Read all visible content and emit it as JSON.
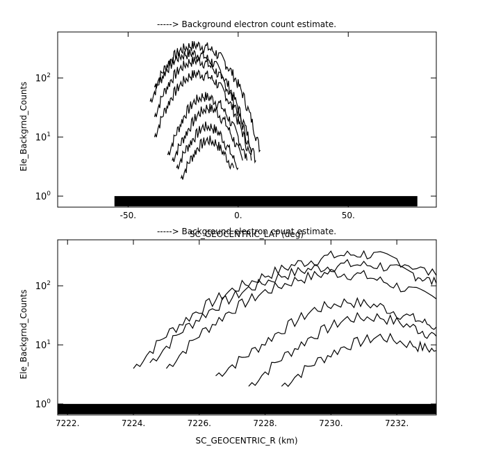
{
  "chart_data": [
    {
      "type": "scatter",
      "title": "-----> Background electron count estimate.",
      "xlabel": "SC_GEOCENTRIC_LAT (deg)",
      "ylabel": "Ele_Backgrnd_Counts",
      "xlim": [
        -82,
        90
      ],
      "ylim": [
        0.65,
        600
      ],
      "yscale": "log",
      "x_ticks": [
        -50,
        0,
        50
      ],
      "x_tick_labels": [
        "-50.",
        "0.",
        "50."
      ],
      "y_ticks": [
        1,
        10,
        100
      ],
      "y_tick_labels": [
        "10^0",
        "10^1",
        "10^2"
      ],
      "grid": false,
      "legend": "none",
      "series": [
        {
          "x": [
            -38,
            -34,
            -30,
            -26,
            -22,
            -18,
            -14,
            -10,
            -6,
            -2,
            2,
            6,
            10
          ],
          "y": [
            70,
            135,
            220,
            300,
            350,
            360,
            330,
            265,
            185,
            110,
            55,
            20,
            6
          ]
        },
        {
          "x": [
            -40,
            -36,
            -32,
            -28,
            -24,
            -20,
            -16,
            -12,
            -8,
            -4,
            0,
            4,
            8
          ],
          "y": [
            40,
            85,
            150,
            215,
            255,
            260,
            240,
            190,
            130,
            70,
            32,
            12,
            4
          ]
        },
        {
          "x": [
            -38,
            -34,
            -30,
            -26,
            -22,
            -18,
            -14,
            -10,
            -6,
            -2,
            2,
            6
          ],
          "y": [
            22,
            55,
            100,
            150,
            190,
            200,
            175,
            130,
            80,
            40,
            16,
            5
          ]
        },
        {
          "x": [
            -38,
            -34,
            -30,
            -26,
            -22,
            -18,
            -14,
            -10,
            -6,
            -2,
            2,
            6
          ],
          "y": [
            10,
            25,
            50,
            80,
            110,
            120,
            110,
            85,
            55,
            28,
            12,
            4
          ]
        },
        {
          "x": [
            -32,
            -28,
            -24,
            -20,
            -16,
            -12,
            -8,
            -4,
            0,
            4
          ],
          "y": [
            5,
            12,
            25,
            40,
            50,
            45,
            35,
            20,
            10,
            4
          ]
        },
        {
          "x": [
            -30,
            -26,
            -22,
            -18,
            -14,
            -10,
            -6,
            -2,
            2
          ],
          "y": [
            4,
            8,
            15,
            25,
            32,
            28,
            18,
            9,
            4
          ]
        },
        {
          "x": [
            -28,
            -24,
            -20,
            -16,
            -12,
            -8,
            -4,
            0
          ],
          "y": [
            3,
            6,
            10,
            15,
            15,
            11,
            6,
            3
          ]
        },
        {
          "x": [
            -26,
            -22,
            -18,
            -14,
            -10,
            -6,
            -2
          ],
          "y": [
            2,
            4,
            7,
            9,
            8,
            5,
            3
          ]
        }
      ]
    },
    {
      "type": "scatter",
      "title": "-----> Background electron count estimate.",
      "xlabel": "SC_GEOCENTRIC_R (km)",
      "ylabel": "Ele_Backgrnd_Counts",
      "xlim": [
        7221.7,
        7233.2
      ],
      "ylim": [
        0.65,
        600
      ],
      "yscale": "log",
      "x_ticks": [
        7222,
        7224,
        7226,
        7228,
        7230,
        7232
      ],
      "x_tick_labels": [
        "7222.",
        "7224.",
        "7226.",
        "7228.",
        "7230.",
        "7232."
      ],
      "y_ticks": [
        1,
        10,
        100
      ],
      "y_tick_labels": [
        "10^0",
        "10^1",
        "10^2"
      ],
      "grid": false,
      "legend": "none",
      "series": [
        {
          "x": [
            7224.0,
            7225.0,
            7226.0,
            7227.0,
            7228.0,
            7229.0,
            7230.0,
            7231.0,
            7232.0,
            7233.2
          ],
          "y": [
            4,
            15,
            40,
            85,
            150,
            240,
            320,
            350,
            280,
            150
          ]
        },
        {
          "x": [
            7224.5,
            7225.5,
            7226.5,
            7227.5,
            7228.5,
            7229.5,
            7230.5,
            7231.5,
            7232.5,
            7233.2
          ],
          "y": [
            5,
            18,
            45,
            90,
            150,
            200,
            230,
            220,
            160,
            110
          ]
        },
        {
          "x": [
            7225.0,
            7226.0,
            7227.0,
            7228.0,
            7229.0,
            7230.0,
            7231.0,
            7232.0,
            7233.2
          ],
          "y": [
            4,
            15,
            40,
            80,
            130,
            170,
            150,
            100,
            60
          ]
        },
        {
          "x": [
            7226.5,
            7227.5,
            7228.5,
            7229.5,
            7230.5,
            7231.5,
            7232.5,
            7233.2
          ],
          "y": [
            3,
            7,
            18,
            40,
            55,
            45,
            28,
            20
          ]
        },
        {
          "x": [
            7227.5,
            7228.5,
            7229.5,
            7230.5,
            7231.5,
            7232.5,
            7233.2
          ],
          "y": [
            2,
            6,
            15,
            28,
            30,
            20,
            14
          ]
        },
        {
          "x": [
            7228.5,
            7229.5,
            7230.5,
            7231.5,
            7232.5,
            7233.2
          ],
          "y": [
            2,
            5,
            10,
            14,
            10,
            8
          ]
        }
      ]
    }
  ]
}
